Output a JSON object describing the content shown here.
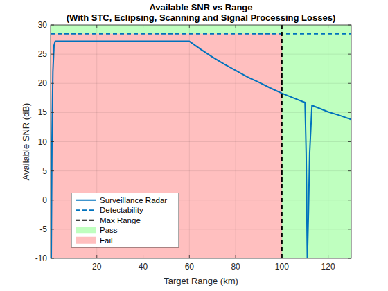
{
  "chart_data": {
    "type": "line",
    "title": "Available SNR vs Range",
    "subtitle": "(With STC, Eclipsing, Scanning and Signal Processing Losses)",
    "x_label": "Target Range (km)",
    "y_label": "Available SNR (dB)",
    "x": [
      0.3,
      0.6,
      1,
      1.5,
      2,
      60,
      65,
      70,
      75,
      80,
      85,
      90,
      95,
      100,
      105,
      110,
      110.5,
      111,
      111.5,
      112,
      113,
      115,
      120,
      125,
      130
    ],
    "series": [
      {
        "name": "Surveillance Radar",
        "color": "#0072bd",
        "line_style": "solid",
        "values": [
          -10,
          10,
          22,
          26.5,
          27.2,
          27.2,
          25.8,
          24.5,
          23.3,
          22.2,
          21.1,
          20.2,
          19.2,
          18.3,
          17.5,
          16.7,
          8,
          -10,
          -2,
          8,
          16.2,
          15.9,
          15.1,
          14.5,
          13.8
        ]
      }
    ],
    "reference_lines": [
      {
        "name": "Detectability",
        "axis": "y",
        "value": 28.5,
        "color": "#0072bd",
        "line_style": "dashed"
      },
      {
        "name": "Max Range",
        "axis": "x",
        "value": 100,
        "color": "#000000",
        "line_style": "dashed"
      }
    ],
    "regions": [
      {
        "name": "Pass",
        "color": "#bfffbf"
      },
      {
        "name": "Fail",
        "color": "#ffbfbf"
      }
    ],
    "xlim": [
      0,
      130
    ],
    "xticks": [
      20,
      40,
      60,
      80,
      100,
      120
    ],
    "ylim": [
      -10,
      30
    ],
    "yticks": [
      -10,
      -5,
      0,
      5,
      10,
      15,
      20,
      25,
      30
    ],
    "grid": true,
    "legend": "lower left"
  }
}
